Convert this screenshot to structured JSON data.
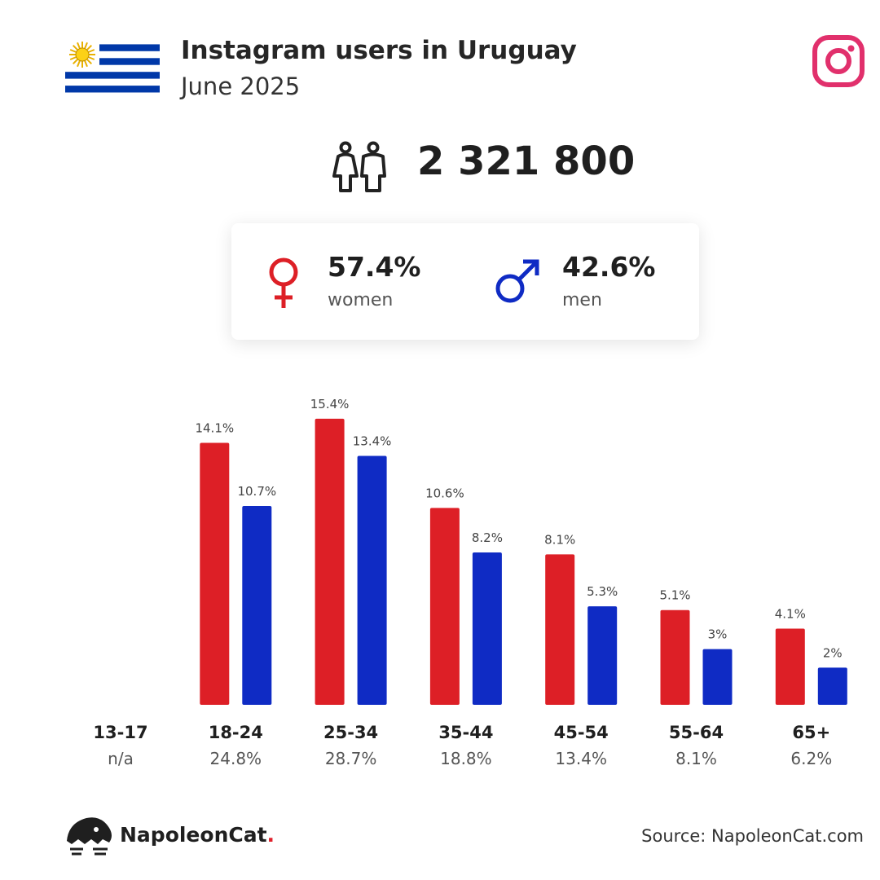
{
  "header": {
    "title": "Instagram users in Uruguay",
    "subtitle": "June 2025"
  },
  "total_users": "2 321 800",
  "gender": {
    "women_pct": "57.4%",
    "women_label": "women",
    "men_pct": "42.6%",
    "men_label": "men"
  },
  "colors": {
    "women": "#dd1f26",
    "men": "#0f2bc4",
    "instagram": "#e1306c",
    "flag_blue": "#0038a8",
    "sun": "#fcd116"
  },
  "icons": {
    "flag": "uruguay-flag-icon",
    "instagram": "instagram-icon",
    "people": "people-icon",
    "female": "female-symbol-icon",
    "male": "male-symbol-icon",
    "brand": "napoleoncat-logo-icon"
  },
  "chart_data": {
    "type": "bar",
    "categories": [
      "13-17",
      "18-24",
      "25-34",
      "35-44",
      "45-54",
      "55-64",
      "65+"
    ],
    "category_totals": [
      "n/a",
      "24.8%",
      "28.7%",
      "18.8%",
      "13.4%",
      "8.1%",
      "6.2%"
    ],
    "series": [
      {
        "name": "women",
        "values": [
          null,
          14.1,
          15.4,
          10.6,
          8.1,
          5.1,
          4.1
        ],
        "labels": [
          "",
          "14.1%",
          "15.4%",
          "10.6%",
          "8.1%",
          "5.1%",
          "4.1%"
        ]
      },
      {
        "name": "men",
        "values": [
          null,
          10.7,
          13.4,
          8.2,
          5.3,
          3.0,
          2.0
        ],
        "labels": [
          "",
          "10.7%",
          "13.4%",
          "8.2%",
          "5.3%",
          "3%",
          "2%"
        ]
      }
    ],
    "ylim": [
      0,
      16
    ]
  },
  "footer": {
    "brand_name": "NapoleonCat",
    "brand_dot": ".",
    "source": "Source: NapoleonCat.com"
  }
}
